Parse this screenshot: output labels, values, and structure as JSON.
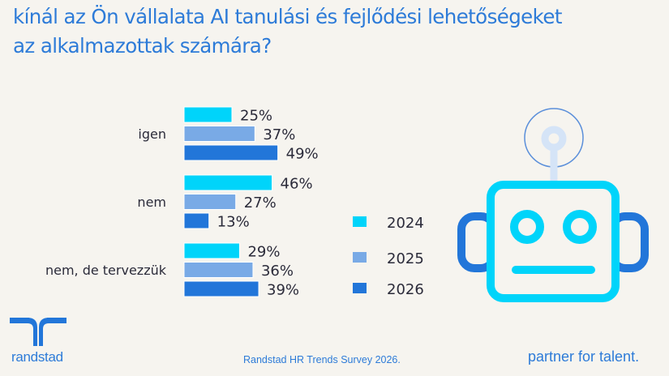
{
  "title": {
    "line1": "kínál az Ön vállalata AI tanulási és fejlődési lehetőségeket",
    "line2": "az alkalmazottak számára?"
  },
  "chart_data": {
    "type": "bar",
    "orientation": "horizontal",
    "categories": [
      "igen",
      "nem",
      "nem, de tervezzük"
    ],
    "series": [
      {
        "name": "2024",
        "color": "#00D4FA",
        "values": [
          25,
          46,
          29
        ]
      },
      {
        "name": "2025",
        "color": "#79AAE6",
        "values": [
          37,
          27,
          36
        ]
      },
      {
        "name": "2026",
        "color": "#2276D9",
        "values": [
          49,
          13,
          39
        ]
      }
    ],
    "value_format": "{v}%",
    "legend_position": "right",
    "grid": false,
    "xlim": [
      0,
      50
    ]
  },
  "footer": {
    "source": "Randstad HR Trends Survey 2026.",
    "brand": "randstad",
    "tagline": "partner for talent."
  },
  "colors": {
    "brand": "#2D7BD8",
    "robot_head": "#00D4FA",
    "robot_ears": "#2276D9",
    "antenna": "#D5E4F7"
  },
  "icons": {
    "logo": "randstad-logo",
    "illustration": "robot-icon"
  }
}
